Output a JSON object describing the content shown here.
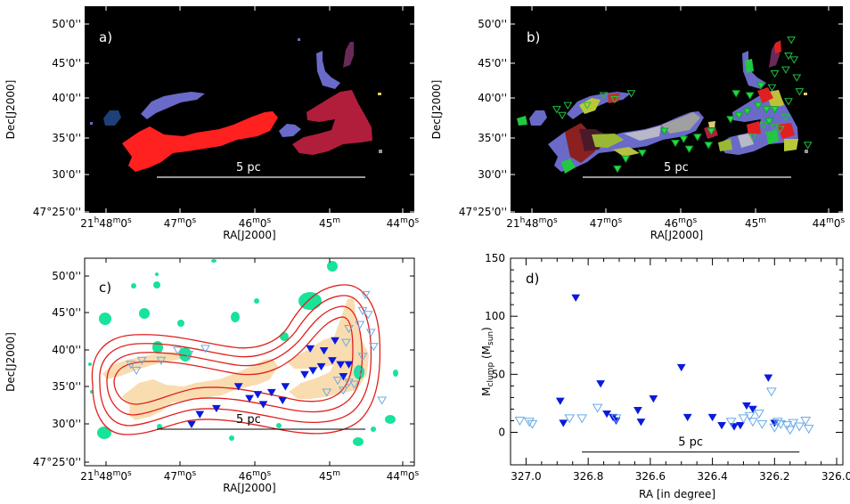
{
  "colors": {
    "panel_bg_dark": "#000000",
    "cloud_red": "#ff2020",
    "cloud_darkred": "#b01e3c",
    "cloud_blue": "#6a6ac8",
    "cloud_navy": "#1e3f78",
    "cloud_purple": "#6a2a58",
    "contour_red": "#e0201c",
    "filament_fill": "#f9dcb0",
    "source_green": "#17e39a",
    "filled_marker": "#0a1adc",
    "open_marker": "#6aaae6"
  },
  "shared": {
    "ra_ticks": [
      "21h48m0s",
      "47m0s",
      "46m0s",
      "45m",
      "44m0s"
    ],
    "dec_ticks": [
      "50'0''",
      "45'0''",
      "40'0''",
      "35'0''",
      "30'0''",
      "47°25'0''"
    ],
    "ra_label": "RA[J2000]",
    "dec_label": "Dec[J2000]",
    "scale_bar_label": "5 pc"
  },
  "panels": {
    "a": {
      "label": "a)"
    },
    "b": {
      "label": "b)"
    },
    "c": {
      "label": "c)"
    },
    "d": {
      "label": "d)"
    }
  },
  "chart_data": {
    "type": "scatter",
    "panel": "d)",
    "xlabel": "RA [in degree]",
    "ylabel_main": "M",
    "ylabel_sub1": "clump",
    "ylabel_mid": " (M",
    "ylabel_sub2": "sun",
    "ylabel_end": ")",
    "x_ticks": [
      "327.0",
      "326.8",
      "326.6",
      "326.4",
      "326.2",
      "326.0"
    ],
    "y_ticks": [
      "0",
      "50",
      "100",
      "150"
    ],
    "xlim": [
      327.05,
      325.98
    ],
    "ylim": [
      -28,
      150
    ],
    "scale_bar": {
      "label": "5 pc",
      "x_range": [
        326.82,
        326.12
      ],
      "y": -17
    },
    "series": [
      {
        "marker": "filled-down-triangle",
        "points": [
          [
            326.84,
            116
          ],
          [
            326.89,
            27
          ],
          [
            326.88,
            8
          ],
          [
            326.76,
            42
          ],
          [
            326.74,
            16
          ],
          [
            326.72,
            13
          ],
          [
            326.71,
            10
          ],
          [
            326.64,
            19
          ],
          [
            326.63,
            9
          ],
          [
            326.59,
            29
          ],
          [
            326.5,
            56
          ],
          [
            326.48,
            13
          ],
          [
            326.4,
            13
          ],
          [
            326.37,
            6
          ],
          [
            326.33,
            5
          ],
          [
            326.31,
            6
          ],
          [
            326.29,
            23
          ],
          [
            326.27,
            20
          ],
          [
            326.22,
            47
          ],
          [
            326.2,
            8
          ]
        ]
      },
      {
        "marker": "open-down-triangle",
        "points": [
          [
            327.02,
            10
          ],
          [
            326.99,
            9
          ],
          [
            326.98,
            7
          ],
          [
            326.86,
            12
          ],
          [
            326.82,
            12
          ],
          [
            326.77,
            21
          ],
          [
            326.71,
            12
          ],
          [
            326.34,
            9
          ],
          [
            326.3,
            12
          ],
          [
            326.28,
            14
          ],
          [
            326.27,
            9
          ],
          [
            326.25,
            16
          ],
          [
            326.24,
            7
          ],
          [
            326.21,
            35
          ],
          [
            326.2,
            4
          ],
          [
            326.19,
            9
          ],
          [
            326.18,
            7
          ],
          [
            326.16,
            6
          ],
          [
            326.15,
            2
          ],
          [
            326.14,
            8
          ],
          [
            326.12,
            5
          ],
          [
            326.1,
            10
          ],
          [
            326.09,
            3
          ]
        ]
      }
    ]
  }
}
